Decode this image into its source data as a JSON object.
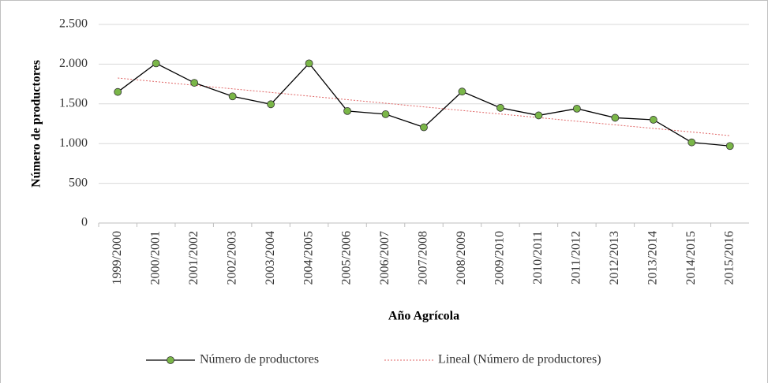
{
  "chart_data": {
    "type": "line",
    "x_label": "Año Agrícola",
    "y_label": "Número de productores",
    "categories": [
      "1999/2000",
      "2000/2001",
      "2001/2002",
      "2002/2003",
      "2003/2004",
      "2004/2005",
      "2005/2006",
      "2006/2007",
      "2007/2008",
      "2008/2009",
      "2009/2010",
      "2010/2011",
      "2011/2012",
      "2012/2013",
      "2013/2014",
      "2014/2015",
      "2015/2016"
    ],
    "series": [
      {
        "name": "Número de productores",
        "color": "#7ab648",
        "line_color": "#000000",
        "marker": "circle",
        "values": [
          1650,
          2010,
          1765,
          1595,
          1495,
          2010,
          1410,
          1370,
          1205,
          1655,
          1450,
          1355,
          1440,
          1325,
          1300,
          1015,
          970
        ]
      },
      {
        "name": "Lineal (Número de productores)",
        "color": "#e06666",
        "dashed": true,
        "values": [
          1825,
          1780,
          1734,
          1689,
          1644,
          1598,
          1553,
          1508,
          1462,
          1417,
          1372,
          1327,
          1281,
          1236,
          1191,
          1146,
          1100
        ]
      }
    ],
    "ylim": [
      0,
      2500
    ],
    "yticks": [
      0,
      500,
      {
        "value": 1000,
        "label": "1.000"
      },
      {
        "value": 1500,
        "label": "1.500"
      },
      {
        "value": 2000,
        "label": "2.000"
      },
      {
        "value": 2500,
        "label": "2.500"
      }
    ],
    "grid": true,
    "legend": "bottom"
  }
}
